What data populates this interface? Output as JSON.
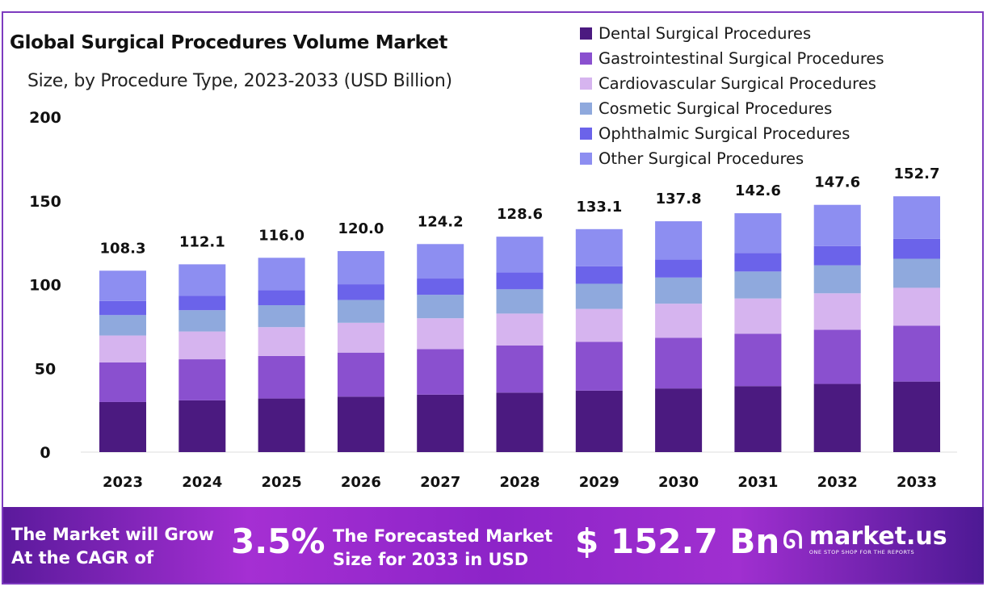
{
  "chart_data": {
    "type": "bar",
    "stacked": true,
    "title": "Global Surgical Procedures Volume Market",
    "subtitle": "Size, by Procedure Type, 2023-2033 (USD Billion)",
    "xlabel": "",
    "ylabel": "",
    "ylim": [
      0,
      200
    ],
    "yticks": [
      "0",
      "50",
      "100",
      "150",
      "200"
    ],
    "grid": false,
    "legend_position": "top-right",
    "categories": [
      "2023",
      "2024",
      "2025",
      "2026",
      "2027",
      "2028",
      "2029",
      "2030",
      "2031",
      "2032",
      "2033"
    ],
    "totals": [
      "108.3",
      "112.1",
      "116.0",
      "120.0",
      "124.2",
      "128.6",
      "133.1",
      "137.8",
      "142.6",
      "147.6",
      "152.7"
    ],
    "series": [
      {
        "name": "Dental Surgical Procedures",
        "color": "#4b1a80",
        "values": [
          29.9,
          30.9,
          32.0,
          33.1,
          34.3,
          35.5,
          36.7,
          38.0,
          39.4,
          40.7,
          42.1
        ]
      },
      {
        "name": "Gastrointestinal Surgical Procedures",
        "color": "#8a50cf",
        "values": [
          23.7,
          24.5,
          25.4,
          26.3,
          27.2,
          28.2,
          29.1,
          30.2,
          31.2,
          32.3,
          33.4
        ]
      },
      {
        "name": "Cardiovascular Surgical Procedures",
        "color": "#d6b4ef",
        "values": [
          16.0,
          16.6,
          17.2,
          17.8,
          18.4,
          19.0,
          19.7,
          20.4,
          21.1,
          21.8,
          22.6
        ]
      },
      {
        "name": "Cosmetic Surgical Procedures",
        "color": "#8fa9dd",
        "values": [
          12.2,
          12.7,
          13.1,
          13.6,
          14.0,
          14.5,
          15.0,
          15.6,
          16.1,
          16.7,
          17.3
        ]
      },
      {
        "name": "Ophthalmic Surgical Procedures",
        "color": "#6b63ea",
        "values": [
          8.4,
          8.7,
          9.0,
          9.4,
          9.7,
          10.0,
          10.4,
          10.7,
          11.1,
          11.5,
          11.9
        ]
      },
      {
        "name": "Other Surgical Procedures",
        "color": "#8d8ef1",
        "values": [
          18.1,
          18.7,
          19.3,
          19.8,
          20.6,
          21.4,
          22.2,
          22.9,
          23.7,
          24.6,
          25.4
        ]
      }
    ]
  },
  "banner": {
    "cagr_text_line1": "The Market will Grow",
    "cagr_text_line2": "At the CAGR of",
    "cagr_value": "3.5%",
    "forecast_text_line1": "The Forecasted Market",
    "forecast_text_line2": "Size for 2033 in USD",
    "forecast_value": "$ 152.7 Bn",
    "logo_name": "market.us",
    "logo_tagline": "ONE STOP SHOP FOR THE REPORTS"
  }
}
